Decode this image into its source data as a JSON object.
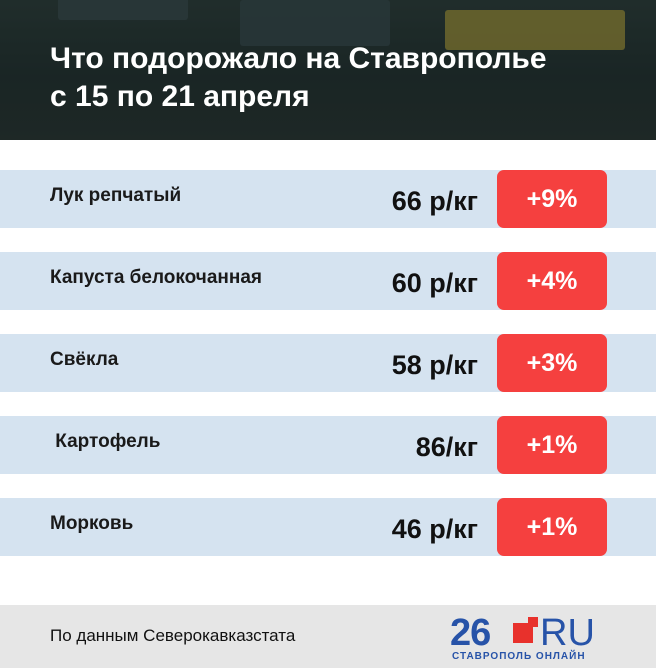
{
  "header": {
    "title": [
      "Что подорожало на Ставрополье",
      "с 15 по 21 апреля"
    ]
  },
  "table": {
    "rows": [
      [
        "Лук репчатый",
        "66 р/кг",
        "+9%"
      ],
      [
        "Капуста белокочанная",
        "60 р/кг",
        "+4%"
      ],
      [
        "Свёкла",
        "58 р/кг",
        "+3%"
      ],
      [
        " Картофель",
        "86/кг",
        "+1%"
      ],
      [
        "Морковь",
        "46 р/кг",
        "+1%"
      ]
    ]
  },
  "footer": {
    "source": "По данным Северокавказстата",
    "logo": {
      "number": "26",
      "domain": "RU",
      "tagline": "СТАВРОПОЛЬ ОНЛАЙН"
    }
  }
}
